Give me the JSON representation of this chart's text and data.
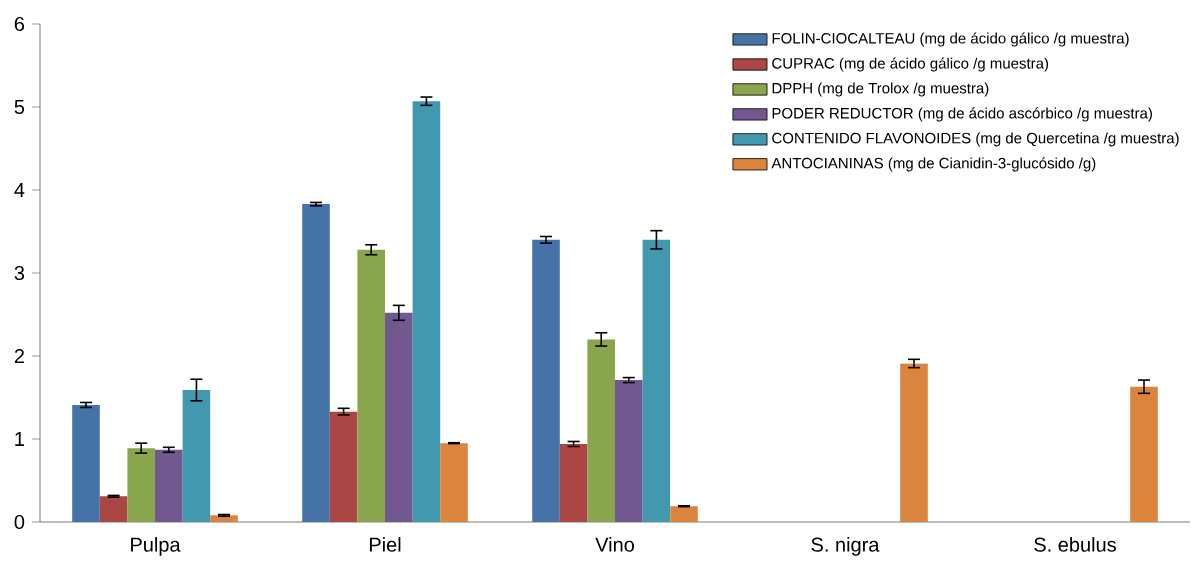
{
  "chart_data": {
    "type": "bar",
    "categories": [
      "Pulpa",
      "Piel",
      "Vino",
      "S. nigra",
      "S. ebulus"
    ],
    "ylim": [
      0,
      6
    ],
    "yticks": [
      0,
      1,
      2,
      3,
      4,
      5,
      6
    ],
    "grid": false,
    "legend": "top right",
    "series": [
      {
        "name": "FOLIN-CIOCALTEAU (mg de ácido gálico /g muestra)",
        "color": "#4572a7",
        "values": [
          1.41,
          3.83,
          3.4,
          null,
          null
        ],
        "errors": [
          0.03,
          0.02,
          0.04,
          null,
          null
        ]
      },
      {
        "name": "CUPRAC (mg de ácido gálico /g muestra)",
        "color": "#aa4643",
        "values": [
          0.31,
          1.33,
          0.94,
          null,
          null
        ],
        "errors": [
          0.01,
          0.04,
          0.03,
          null,
          null
        ]
      },
      {
        "name": "DPPH (mg de Trolox /g muestra)",
        "color": "#89a54e",
        "values": [
          0.89,
          3.28,
          2.2,
          null,
          null
        ],
        "errors": [
          0.06,
          0.06,
          0.08,
          null,
          null
        ]
      },
      {
        "name": "PODER REDUCTOR (mg de ácido ascórbico /g muestra)",
        "color": "#71588f",
        "values": [
          0.87,
          2.52,
          1.71,
          null,
          null
        ],
        "errors": [
          0.03,
          0.09,
          0.03,
          null,
          null
        ]
      },
      {
        "name": "CONTENIDO FLAVONOIDES (mg de Quercetina /g muestra)",
        "color": "#4198af",
        "values": [
          1.59,
          5.07,
          3.4,
          null,
          null
        ],
        "errors": [
          0.13,
          0.05,
          0.11,
          null,
          null
        ]
      },
      {
        "name": "ANTOCIANINAS (mg de Cianidin-3-glucósido /g)",
        "color": "#db843d",
        "values": [
          0.08,
          0.95,
          0.19,
          1.91,
          1.63
        ],
        "errors": [
          0.01,
          0.005,
          0.005,
          0.05,
          0.08
        ]
      }
    ]
  }
}
